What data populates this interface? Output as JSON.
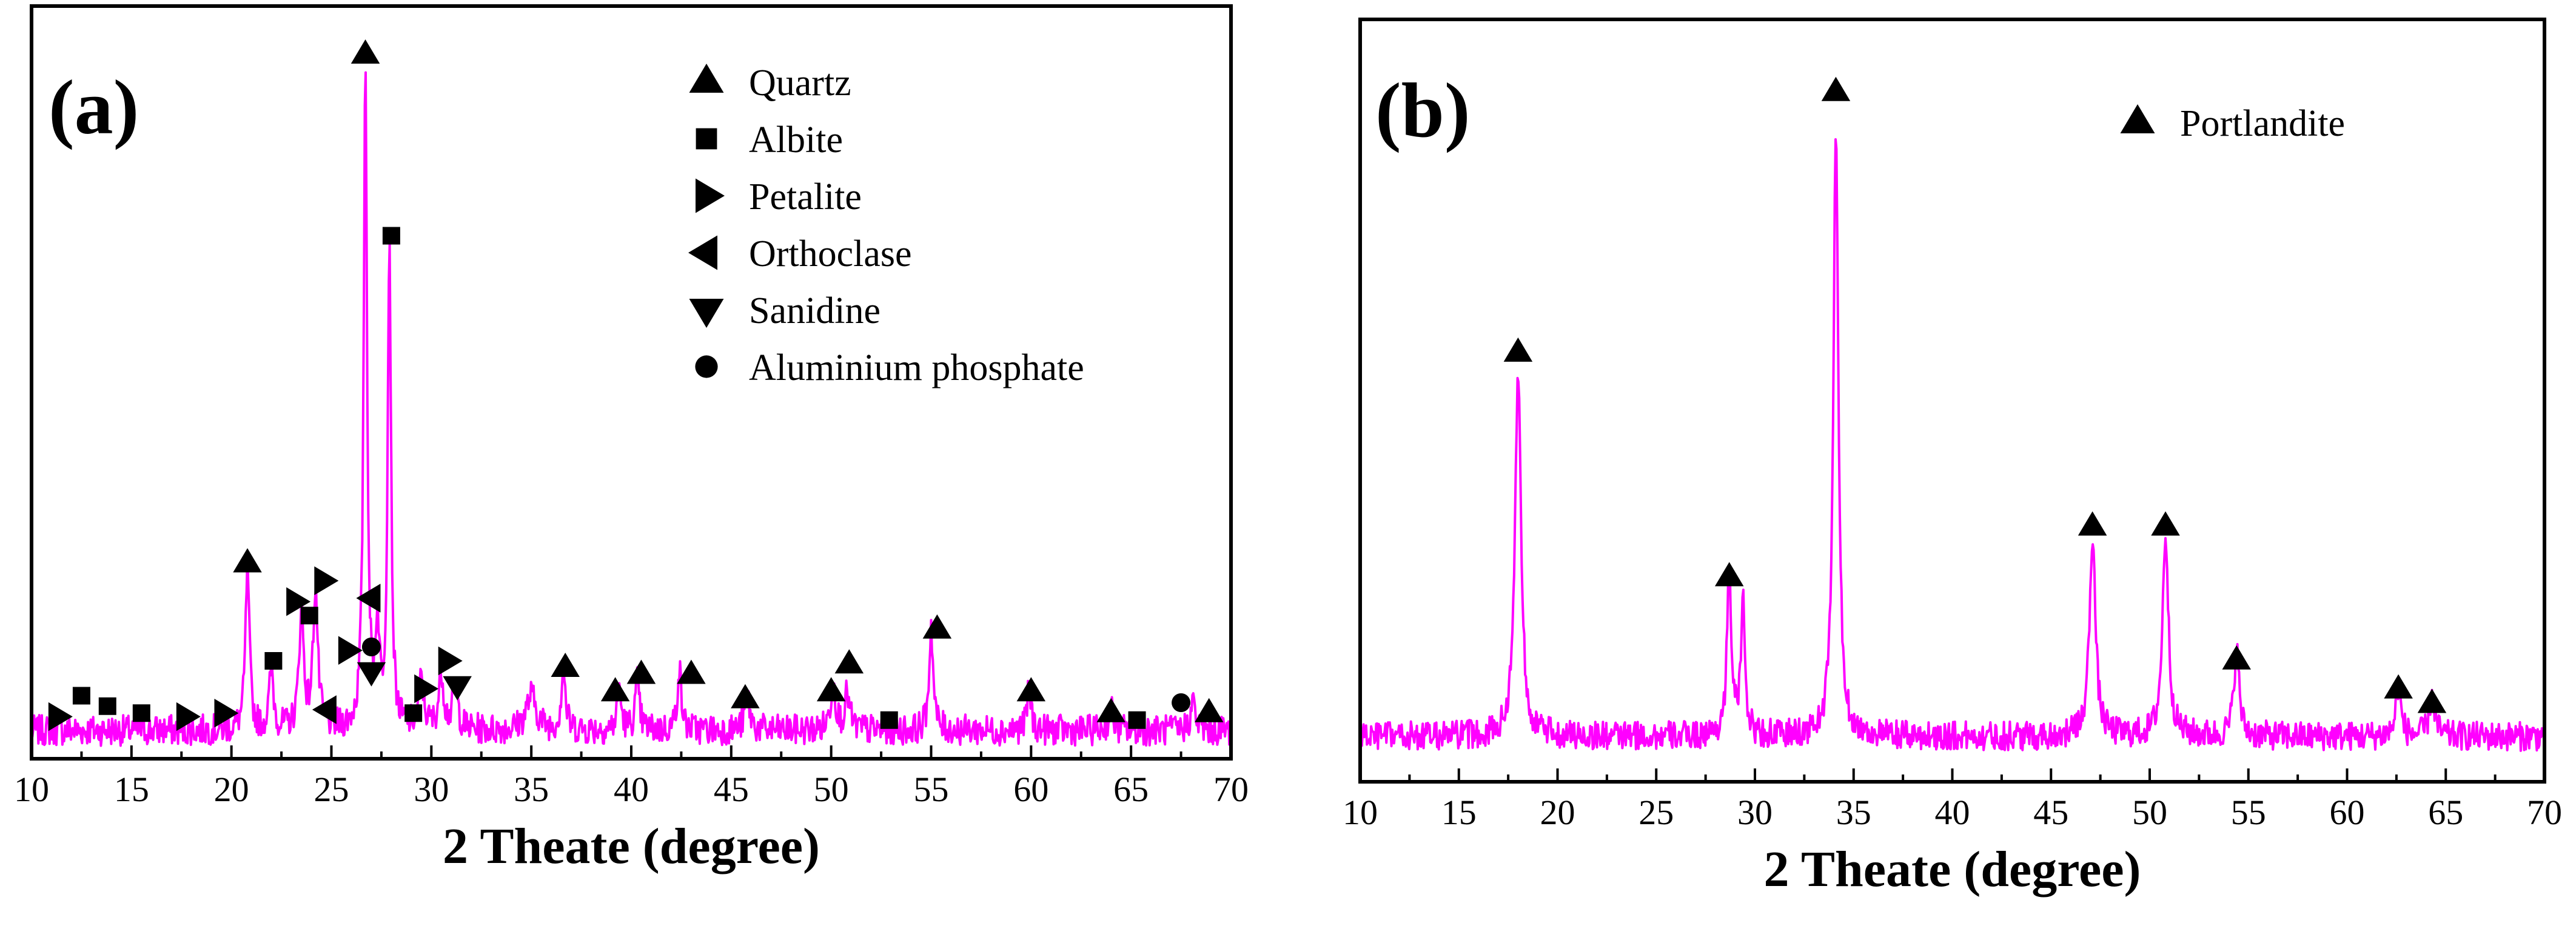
{
  "chart_data": [
    {
      "panel": "(a)",
      "type": "line",
      "title": "",
      "xlabel": "2 Theate (degree)",
      "ylabel": "",
      "xlim": [
        10,
        70
      ],
      "ylim": [
        0,
        100
      ],
      "xticks": [
        10,
        15,
        20,
        25,
        30,
        35,
        40,
        45,
        50,
        55,
        60,
        65,
        70
      ],
      "grid": false,
      "line_color": "#ff00ff",
      "baseline": 3,
      "noise": 2.2,
      "peaks": [
        {
          "x": 20.8,
          "h": 23,
          "w": 0.12
        },
        {
          "x": 22.0,
          "h": 9,
          "w": 0.12
        },
        {
          "x": 23.5,
          "h": 17,
          "w": 0.14
        },
        {
          "x": 24.2,
          "h": 20,
          "w": 0.14
        },
        {
          "x": 26.7,
          "h": 96,
          "w": 0.1
        },
        {
          "x": 27.3,
          "h": 14,
          "w": 0.12
        },
        {
          "x": 27.9,
          "h": 70,
          "w": 0.1
        },
        {
          "x": 29.5,
          "h": 7,
          "w": 0.15
        },
        {
          "x": 30.5,
          "h": 8,
          "w": 0.15
        },
        {
          "x": 31.2,
          "h": 6,
          "w": 0.15
        },
        {
          "x": 35.0,
          "h": 5,
          "w": 0.3
        },
        {
          "x": 36.6,
          "h": 9,
          "w": 0.12
        },
        {
          "x": 39.4,
          "h": 6,
          "w": 0.12
        },
        {
          "x": 40.3,
          "h": 7,
          "w": 0.12
        },
        {
          "x": 42.4,
          "h": 9,
          "w": 0.12
        },
        {
          "x": 45.8,
          "h": 5,
          "w": 0.15
        },
        {
          "x": 50.1,
          "h": 7,
          "w": 0.15
        },
        {
          "x": 50.8,
          "h": 5,
          "w": 0.15
        },
        {
          "x": 55.0,
          "h": 15,
          "w": 0.12
        },
        {
          "x": 59.9,
          "h": 6,
          "w": 0.12
        },
        {
          "x": 64.0,
          "h": 3,
          "w": 0.15
        },
        {
          "x": 68.1,
          "h": 4,
          "w": 0.15
        }
      ],
      "legend": [
        {
          "symbol": "triangle-up",
          "label": "Quartz"
        },
        {
          "symbol": "square",
          "label": "Albite"
        },
        {
          "symbol": "triangle-right",
          "label": "Petalite"
        },
        {
          "symbol": "triangle-left",
          "label": "Orthoclase"
        },
        {
          "symbol": "triangle-down",
          "label": "Sanidine"
        },
        {
          "symbol": "circle",
          "label": "Aluminium phosphate"
        }
      ],
      "legend_position": "top-right",
      "annotations": [
        {
          "symbol": "triangle-right",
          "x": 11.3,
          "y": 5
        },
        {
          "symbol": "square",
          "x": 12.5,
          "y": 8
        },
        {
          "symbol": "square",
          "x": 13.8,
          "y": 6.5
        },
        {
          "symbol": "square",
          "x": 15.5,
          "y": 5.5
        },
        {
          "symbol": "triangle-right",
          "x": 17.7,
          "y": 5
        },
        {
          "symbol": "triangle-right",
          "x": 19.6,
          "y": 5.5
        },
        {
          "symbol": "triangle-up",
          "x": 20.8,
          "y": 27
        },
        {
          "symbol": "square",
          "x": 22.1,
          "y": 13
        },
        {
          "symbol": "triangle-right",
          "x": 23.2,
          "y": 21.5
        },
        {
          "symbol": "square",
          "x": 23.9,
          "y": 19.5
        },
        {
          "symbol": "triangle-right",
          "x": 24.6,
          "y": 24.5
        },
        {
          "symbol": "triangle-left",
          "x": 24.8,
          "y": 6
        },
        {
          "symbol": "triangle-right",
          "x": 25.8,
          "y": 14.5
        },
        {
          "symbol": "triangle-up",
          "x": 26.7,
          "y": 100
        },
        {
          "symbol": "triangle-left",
          "x": 27.0,
          "y": 22
        },
        {
          "symbol": "circle",
          "x": 27.0,
          "y": 15
        },
        {
          "symbol": "triangle-down",
          "x": 27.0,
          "y": 11.5
        },
        {
          "symbol": "square",
          "x": 28.0,
          "y": 74
        },
        {
          "symbol": "square",
          "x": 29.1,
          "y": 5.5
        },
        {
          "symbol": "triangle-right",
          "x": 29.6,
          "y": 9
        },
        {
          "symbol": "triangle-right",
          "x": 30.8,
          "y": 13
        },
        {
          "symbol": "triangle-down",
          "x": 31.3,
          "y": 9.5
        },
        {
          "symbol": "triangle-up",
          "x": 36.7,
          "y": 12
        },
        {
          "symbol": "triangle-up",
          "x": 39.2,
          "y": 8.5
        },
        {
          "symbol": "triangle-up",
          "x": 40.5,
          "y": 11
        },
        {
          "symbol": "triangle-up",
          "x": 43.0,
          "y": 11
        },
        {
          "symbol": "triangle-up",
          "x": 45.7,
          "y": 7.5
        },
        {
          "symbol": "triangle-up",
          "x": 50.0,
          "y": 8.5
        },
        {
          "symbol": "triangle-up",
          "x": 50.9,
          "y": 12.5
        },
        {
          "symbol": "square",
          "x": 52.9,
          "y": 4.5
        },
        {
          "symbol": "triangle-up",
          "x": 55.3,
          "y": 17.5
        },
        {
          "symbol": "triangle-up",
          "x": 60.0,
          "y": 8.5
        },
        {
          "symbol": "triangle-up",
          "x": 64.0,
          "y": 5.5
        },
        {
          "symbol": "square",
          "x": 65.3,
          "y": 4.5
        },
        {
          "symbol": "circle",
          "x": 67.5,
          "y": 7
        },
        {
          "symbol": "triangle-up",
          "x": 68.9,
          "y": 5.5
        }
      ]
    },
    {
      "panel": "(b)",
      "type": "line",
      "title": "",
      "xlabel": "2 Theate (degree)",
      "ylabel": "",
      "xlim": [
        10,
        70
      ],
      "ylim": [
        0,
        100
      ],
      "xticks": [
        10,
        15,
        20,
        25,
        30,
        35,
        40,
        45,
        50,
        55,
        60,
        65,
        70
      ],
      "grid": false,
      "line_color": "#ff00ff",
      "baseline": 5,
      "noise": 2.0,
      "peaks": [
        {
          "x": 18.0,
          "h": 51,
          "w": 0.18
        },
        {
          "x": 28.7,
          "h": 22,
          "w": 0.14
        },
        {
          "x": 29.4,
          "h": 19,
          "w": 0.12
        },
        {
          "x": 34.1,
          "h": 84,
          "w": 0.15
        },
        {
          "x": 47.1,
          "h": 28,
          "w": 0.18
        },
        {
          "x": 50.8,
          "h": 28,
          "w": 0.18
        },
        {
          "x": 54.4,
          "h": 12,
          "w": 0.16
        },
        {
          "x": 62.6,
          "h": 7,
          "w": 0.15
        },
        {
          "x": 64.3,
          "h": 6,
          "w": 0.16
        }
      ],
      "legend": [
        {
          "symbol": "triangle-up",
          "label": "Portlandite"
        }
      ],
      "legend_position": "top-right",
      "annotations": [
        {
          "symbol": "triangle-up",
          "x": 18.0,
          "y": 58
        },
        {
          "symbol": "triangle-up",
          "x": 28.7,
          "y": 27
        },
        {
          "symbol": "triangle-up",
          "x": 34.1,
          "y": 94
        },
        {
          "symbol": "triangle-up",
          "x": 47.1,
          "y": 34
        },
        {
          "symbol": "triangle-up",
          "x": 50.8,
          "y": 34
        },
        {
          "symbol": "triangle-up",
          "x": 54.4,
          "y": 15.5
        },
        {
          "symbol": "triangle-up",
          "x": 62.6,
          "y": 11.5
        },
        {
          "symbol": "triangle-up",
          "x": 64.3,
          "y": 9.5
        }
      ]
    }
  ]
}
